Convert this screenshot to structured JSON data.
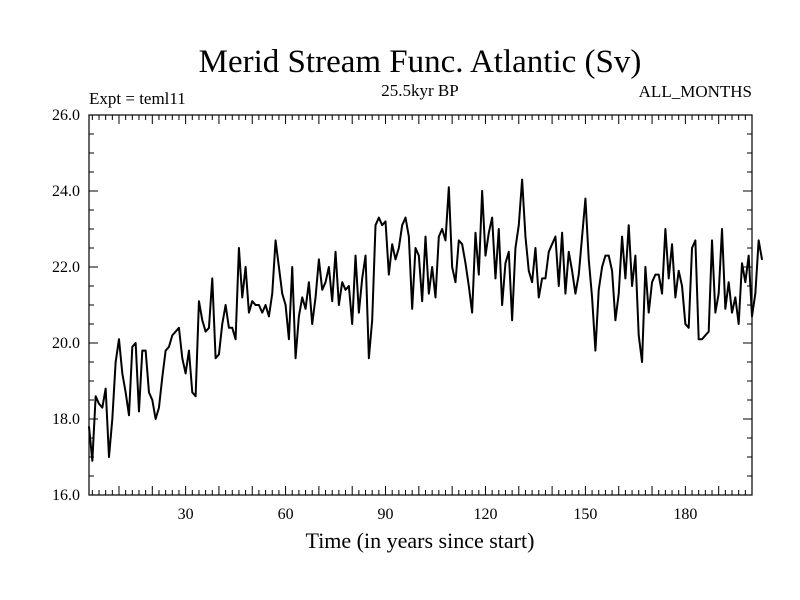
{
  "chart_data": {
    "type": "line",
    "title": "Merid Stream Func. Atlantic (Sv)",
    "subtitle_left": "Expt = teml11",
    "subtitle_center": "25.5kyr BP",
    "subtitle_right": "ALL_MONTHS",
    "xlabel": "Time (in years since start)",
    "ylabel": "",
    "xlim": [
      1,
      200
    ],
    "ylim": [
      16,
      26
    ],
    "x_ticks": [
      30,
      60,
      90,
      120,
      150,
      180
    ],
    "x_tick_labels": [
      "30",
      "60",
      "90",
      "120",
      "150",
      "180"
    ],
    "y_ticks": [
      16,
      18,
      20,
      22,
      24,
      26
    ],
    "y_tick_labels": [
      "16.0",
      "18.0",
      "20.0",
      "22.0",
      "24.0",
      "26.0"
    ],
    "grid": false,
    "series": [
      {
        "name": "Merid Stream Func. Atlantic",
        "x_start": 1,
        "x_step": 1,
        "color": "#000000",
        "values": [
          17.8,
          16.9,
          18.6,
          18.4,
          18.3,
          18.8,
          17.0,
          18.0,
          19.5,
          20.1,
          19.2,
          18.7,
          18.1,
          19.9,
          20.0,
          18.2,
          19.8,
          19.8,
          18.7,
          18.5,
          18.0,
          18.3,
          19.1,
          19.8,
          19.9,
          20.2,
          20.3,
          20.4,
          19.6,
          19.2,
          19.8,
          18.7,
          18.6,
          21.1,
          20.6,
          20.3,
          20.4,
          21.7,
          19.6,
          19.7,
          20.5,
          21.0,
          20.4,
          20.4,
          20.1,
          22.5,
          21.2,
          22.0,
          20.8,
          21.1,
          21.0,
          21.0,
          20.8,
          21.0,
          20.7,
          21.3,
          22.7,
          22.0,
          21.3,
          21.0,
          20.1,
          22.0,
          19.6,
          20.7,
          21.2,
          20.9,
          21.6,
          20.5,
          21.2,
          22.2,
          21.4,
          21.6,
          22.0,
          21.1,
          22.4,
          21.0,
          21.6,
          21.4,
          21.5,
          20.5,
          22.3,
          20.8,
          21.7,
          22.3,
          19.6,
          20.6,
          23.1,
          23.3,
          23.1,
          23.2,
          21.8,
          22.6,
          22.2,
          22.5,
          23.1,
          23.3,
          22.8,
          20.9,
          22.5,
          22.3,
          21.1,
          22.8,
          21.3,
          22.0,
          21.2,
          22.8,
          23.0,
          22.7,
          24.1,
          22.0,
          21.6,
          22.7,
          22.6,
          22.1,
          21.5,
          20.8,
          22.9,
          21.8,
          24.0,
          22.3,
          22.9,
          23.3,
          21.7,
          23.0,
          21.0,
          22.1,
          22.4,
          20.6,
          22.5,
          23.1,
          24.3,
          22.8,
          21.9,
          21.6,
          22.5,
          21.2,
          21.7,
          21.7,
          22.4,
          22.6,
          22.8,
          21.5,
          22.9,
          21.3,
          22.4,
          21.9,
          21.3,
          21.8,
          22.8,
          23.8,
          22.2,
          21.2,
          19.8,
          21.4,
          22.0,
          22.3,
          22.3,
          21.9,
          20.6,
          21.3,
          22.8,
          21.7,
          23.1,
          21.5,
          22.3,
          20.2,
          19.5,
          22.0,
          20.8,
          21.6,
          21.8,
          21.8,
          21.3,
          23.0,
          21.7,
          22.6,
          21.2,
          21.9,
          21.5,
          20.5,
          20.4,
          22.5,
          22.7,
          20.1,
          20.1,
          20.2,
          20.3,
          22.7,
          20.8,
          21.3,
          23.0,
          20.9,
          21.6,
          20.8,
          21.2,
          20.5,
          22.1,
          21.6,
          22.3,
          20.7,
          21.3,
          22.7,
          22.2
        ]
      }
    ]
  }
}
